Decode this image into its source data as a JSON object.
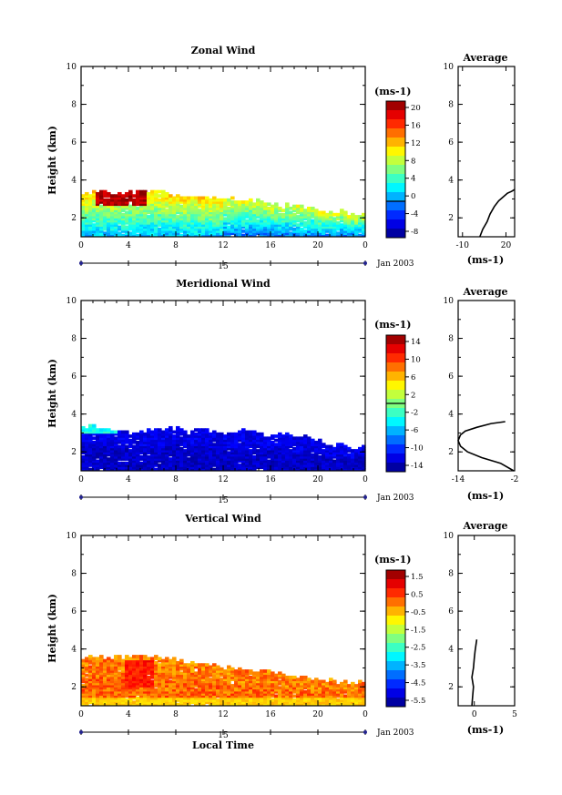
{
  "figure": {
    "x_axis_title": "Local Time",
    "date_label": "Jan 2003",
    "day_label": "15"
  },
  "chart_data": [
    {
      "type": "heatmap",
      "title": "Zonal Wind",
      "xlabel": "Local Time",
      "ylabel": "Height (km)",
      "xlim": [
        0,
        24
      ],
      "ylim": [
        1,
        10
      ],
      "x_ticks": [
        "0",
        "4",
        "8",
        "12",
        "16",
        "20",
        "0"
      ],
      "y_ticks": [
        "2",
        "4",
        "6",
        "8",
        "10"
      ],
      "colorbar": {
        "unit": "(ms-1)",
        "min": -8,
        "max": 22,
        "labels": [
          "20",
          "16",
          "12",
          "8",
          "4",
          "0",
          "-4",
          "-8"
        ],
        "contour_at": 0
      },
      "approx_top_km": [
        3.3,
        3.3,
        3.3,
        3.3,
        3.3,
        3.4,
        3.4,
        3.3,
        3.2,
        3.2,
        3.1,
        3.0,
        3.0,
        3.0,
        2.9,
        2.8,
        2.7,
        2.7,
        2.6,
        2.5,
        2.4,
        2.3,
        2.3,
        2.2,
        2.2
      ],
      "approx_values_low_to_high_km": "about 0 to 4 near 1 km rising to 8 to 12 at 2-3 km; 20+ ms-1 between 1 and 6 LT at about 3 km",
      "average_profile": {
        "title": "Average",
        "xlabel": "(ms-1)",
        "xlim": [
          -13,
          26
        ],
        "x_ticks": [
          "-10",
          "20"
        ],
        "y_ticks": [
          "2",
          "4",
          "6",
          "8",
          "10"
        ],
        "x": [
          2,
          4,
          7,
          9,
          12,
          15,
          18,
          21,
          24,
          26
        ],
        "y": [
          1.0,
          1.4,
          1.8,
          2.2,
          2.6,
          2.9,
          3.1,
          3.3,
          3.4,
          3.5
        ]
      }
    },
    {
      "type": "heatmap",
      "title": "Meridional Wind",
      "xlabel": "Local Time",
      "ylabel": "Height (km)",
      "xlim": [
        0,
        24
      ],
      "ylim": [
        1,
        10
      ],
      "x_ticks": [
        "0",
        "4",
        "8",
        "12",
        "16",
        "20",
        "0"
      ],
      "y_ticks": [
        "2",
        "4",
        "6",
        "8",
        "10"
      ],
      "colorbar": {
        "unit": "(ms-1)",
        "min": -16,
        "max": 16,
        "labels": [
          "14",
          "10",
          "6",
          "2",
          "-2",
          "-6",
          "-10",
          "-14"
        ],
        "contour_at": 0
      },
      "approx_top_km": [
        3.4,
        3.3,
        3.2,
        3.1,
        3.0,
        3.0,
        3.2,
        3.2,
        3.2,
        3.0,
        3.1,
        3.1,
        3.0,
        3.0,
        3.1,
        3.0,
        2.8,
        2.9,
        2.8,
        2.7,
        2.6,
        2.4,
        2.3,
        2.2,
        2.2
      ],
      "approx_values_low_to_high_km": "mostly -12 to -16 ms-1; -2 to -6 near 3.3 km around 0-3 LT",
      "average_profile": {
        "title": "Average",
        "xlabel": "(ms-1)",
        "xlim": [
          -14,
          -2
        ],
        "x_ticks": [
          "-14",
          "-2"
        ],
        "y_ticks": [
          "2",
          "4",
          "6",
          "8",
          "10"
        ],
        "x": [
          -2.2,
          -5,
          -9,
          -12,
          -13.5,
          -14,
          -13.5,
          -12.5,
          -10,
          -7,
          -4
        ],
        "y": [
          1.0,
          1.4,
          1.7,
          2.0,
          2.3,
          2.6,
          2.9,
          3.1,
          3.3,
          3.5,
          3.6
        ]
      }
    },
    {
      "type": "heatmap",
      "title": "Vertical Wind",
      "xlabel": "Local Time",
      "ylabel": "Height (km)",
      "xlim": [
        0,
        24
      ],
      "ylim": [
        1,
        10
      ],
      "x_ticks": [
        "0",
        "4",
        "8",
        "12",
        "16",
        "20",
        "0"
      ],
      "y_ticks": [
        "2",
        "4",
        "6",
        "8",
        "10"
      ],
      "colorbar": {
        "unit": "(ms-1)",
        "min": -7,
        "max": 2.5,
        "labels": [
          "1.5",
          "0.5",
          "-0.5",
          "-1.5",
          "-2.5",
          "-3.5",
          "-4.5",
          "-5.5"
        ]
      },
      "approx_top_km": [
        3.5,
        3.5,
        3.5,
        3.5,
        3.6,
        3.6,
        3.5,
        3.5,
        3.4,
        3.3,
        3.2,
        3.1,
        3.0,
        2.9,
        2.9,
        2.8,
        2.8,
        2.7,
        2.6,
        2.5,
        2.4,
        2.3,
        2.2,
        2.2,
        2.2
      ],
      "approx_values_low_to_high_km": "mostly -0.5 to 0.5 ms-1; around 0.5 to 1.5 near 2-3 km at 4-6 LT",
      "average_profile": {
        "title": "Average",
        "xlabel": "(ms-1)",
        "xlim": [
          -2,
          5
        ],
        "x_ticks": [
          "0",
          "5"
        ],
        "y_ticks": [
          "2",
          "4",
          "6",
          "8",
          "10"
        ],
        "x": [
          -0.3,
          -0.2,
          -0.1,
          -0.3,
          -0.1,
          0.0,
          0.1,
          0.2,
          0.3
        ],
        "y": [
          1.0,
          1.5,
          2.0,
          2.5,
          3.0,
          3.5,
          3.9,
          4.2,
          4.5
        ]
      }
    }
  ]
}
